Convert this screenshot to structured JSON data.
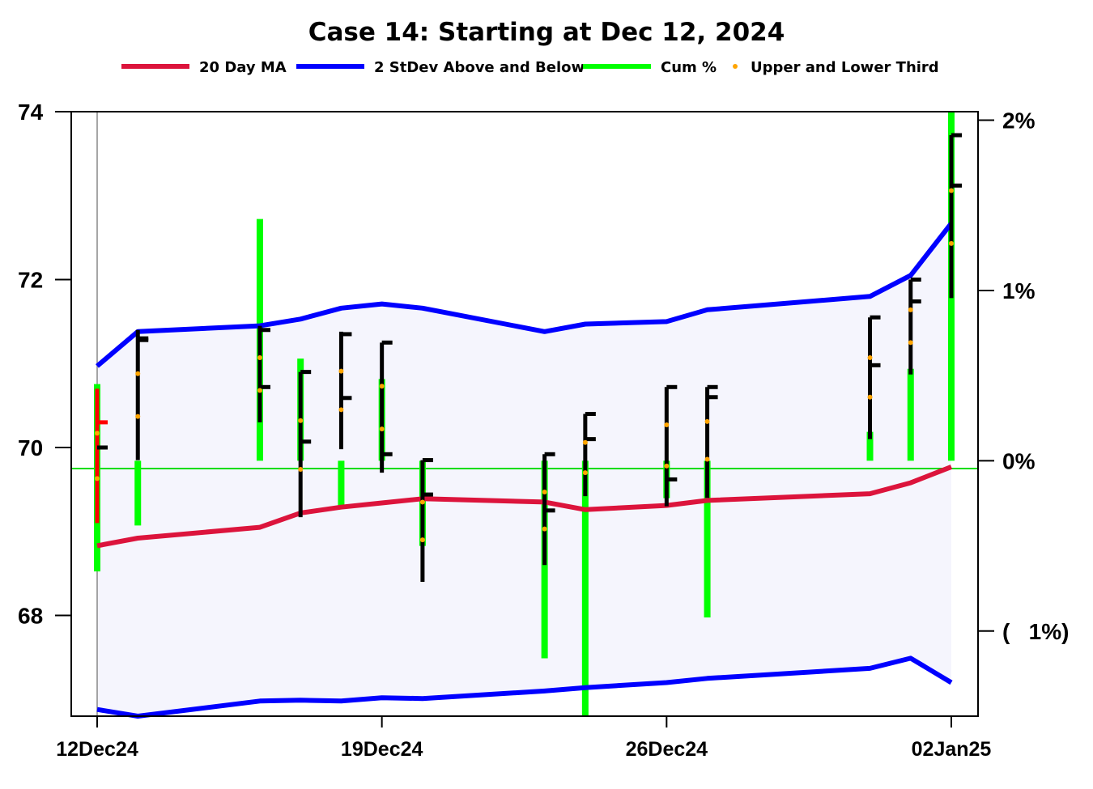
{
  "chart_data": {
    "type": "ohlc",
    "title": "Case 14:  Starting at Dec 12, 2024",
    "legend": [
      {
        "label": "20 Day MA",
        "color": "#dc143c",
        "kind": "line"
      },
      {
        "label": "2 StDev Above and Below",
        "color": "#0000ff",
        "kind": "line"
      },
      {
        "label": "Cum %",
        "color": "#00ff00",
        "kind": "line"
      },
      {
        "label": "Upper and Lower Third",
        "color": "#ffa500",
        "kind": "dot"
      }
    ],
    "legend_position": "top-center",
    "grid": false,
    "y_left": {
      "min": 66.8,
      "max": 74.0,
      "ticks": [
        68,
        70,
        72,
        74
      ]
    },
    "y_right": {
      "min": -1.5,
      "max": 2.05,
      "ticks": [
        2,
        1,
        0,
        -1
      ],
      "tick_labels": [
        "2%",
        "1%",
        "0%",
        "(   1%)"
      ]
    },
    "x_ticks": [
      {
        "date": "2024-12-12",
        "label": "12Dec24"
      },
      {
        "date": "2024-12-19",
        "label": "19Dec24"
      },
      {
        "date": "2024-12-26",
        "label": "26Dec24"
      },
      {
        "date": "2025-01-02",
        "label": "02Jan25"
      }
    ],
    "x_range": [
      "2024-12-11",
      "2025-01-02"
    ],
    "baseline_price": 69.75,
    "bars": [
      {
        "date": "2024-12-12",
        "open": 70.3,
        "high": 70.7,
        "low": 69.1,
        "close": 70.0,
        "upper_third": 70.17,
        "lower_third": 69.63,
        "cum_pct_low": -0.65,
        "cum_pct_high": 0.45,
        "color": "#ff0000"
      },
      {
        "date": "2024-12-13",
        "open": 71.3,
        "high": 71.4,
        "low": 69.85,
        "close": 71.28,
        "upper_third": 70.88,
        "lower_third": 70.37,
        "cum_pct_low": -0.38,
        "cum_pct_high": 0.0,
        "color": "#000000"
      },
      {
        "date": "2024-12-16",
        "open": 71.4,
        "high": 71.45,
        "low": 70.3,
        "close": 70.72,
        "upper_third": 71.07,
        "lower_third": 70.68,
        "cum_pct_low": 0.0,
        "cum_pct_high": 1.42,
        "color": "#000000"
      },
      {
        "date": "2024-12-17",
        "open": 70.9,
        "high": 70.9,
        "low": 69.17,
        "close": 70.07,
        "upper_third": 70.32,
        "lower_third": 69.74,
        "cum_pct_low": 0.0,
        "cum_pct_high": 0.6,
        "color": "#000000"
      },
      {
        "date": "2024-12-18",
        "open": 71.35,
        "high": 71.38,
        "low": 69.98,
        "close": 70.59,
        "upper_third": 70.91,
        "lower_third": 70.45,
        "cum_pct_low": -0.27,
        "cum_pct_high": 0.0,
        "color": "#000000"
      },
      {
        "date": "2024-12-19",
        "open": 71.25,
        "high": 71.25,
        "low": 69.7,
        "close": 69.92,
        "upper_third": 70.73,
        "lower_third": 70.22,
        "cum_pct_low": 0.0,
        "cum_pct_high": 0.48,
        "color": "#000000"
      },
      {
        "date": "2024-12-20",
        "open": 69.85,
        "high": 69.85,
        "low": 68.4,
        "close": 69.44,
        "upper_third": 69.35,
        "lower_third": 68.9,
        "cum_pct_low": -0.5,
        "cum_pct_high": 0.0,
        "color": "#000000"
      },
      {
        "date": "2024-12-23",
        "open": 69.92,
        "high": 69.92,
        "low": 68.6,
        "close": 69.25,
        "upper_third": 69.47,
        "lower_third": 69.03,
        "cum_pct_low": -1.16,
        "cum_pct_high": 0.0,
        "color": "#000000"
      },
      {
        "date": "2024-12-24",
        "open": 70.4,
        "high": 70.4,
        "low": 69.42,
        "close": 70.1,
        "upper_third": 70.06,
        "lower_third": 69.7,
        "cum_pct_low": -1.5,
        "cum_pct_high": 0.0,
        "color": "#000000"
      },
      {
        "date": "2024-12-26",
        "open": 70.72,
        "high": 70.72,
        "low": 69.3,
        "close": 69.62,
        "upper_third": 70.27,
        "lower_third": 69.78,
        "cum_pct_low": -0.22,
        "cum_pct_high": 0.0,
        "color": "#000000"
      },
      {
        "date": "2024-12-27",
        "open": 70.72,
        "high": 70.72,
        "low": 69.4,
        "close": 70.6,
        "upper_third": 70.31,
        "lower_third": 69.86,
        "cum_pct_low": -0.92,
        "cum_pct_high": 0.0,
        "color": "#000000"
      },
      {
        "date": "2024-12-31",
        "open": 71.55,
        "high": 71.55,
        "low": 70.1,
        "close": 70.98,
        "upper_third": 71.07,
        "lower_third": 70.6,
        "cum_pct_low": 0.0,
        "cum_pct_high": 0.17,
        "color": "#000000"
      },
      {
        "date": "2025-01-01",
        "open": 72.0,
        "high": 72.0,
        "low": 70.87,
        "close": 71.74,
        "upper_third": 71.64,
        "lower_third": 71.25,
        "cum_pct_low": 0.0,
        "cum_pct_high": 0.54,
        "color": "#000000"
      },
      {
        "date": "2025-01-02",
        "open": 73.72,
        "high": 73.72,
        "low": 71.78,
        "close": 73.12,
        "upper_third": 73.06,
        "lower_third": 72.43,
        "cum_pct_low": 0.0,
        "cum_pct_high": 2.05,
        "color": "#000000"
      }
    ],
    "moving_average": [
      {
        "date": "2024-12-12",
        "value": 68.83
      },
      {
        "date": "2024-12-13",
        "value": 68.92
      },
      {
        "date": "2024-12-16",
        "value": 69.05
      },
      {
        "date": "2024-12-17",
        "value": 69.22
      },
      {
        "date": "2024-12-18",
        "value": 69.29
      },
      {
        "date": "2024-12-19",
        "value": 69.34
      },
      {
        "date": "2024-12-20",
        "value": 69.39
      },
      {
        "date": "2024-12-23",
        "value": 69.35
      },
      {
        "date": "2024-12-24",
        "value": 69.26
      },
      {
        "date": "2024-12-26",
        "value": 69.31
      },
      {
        "date": "2024-12-27",
        "value": 69.37
      },
      {
        "date": "2024-12-31",
        "value": 69.45
      },
      {
        "date": "2025-01-01",
        "value": 69.58
      },
      {
        "date": "2025-01-02",
        "value": 69.77
      }
    ],
    "upper_band": [
      {
        "date": "2024-12-12",
        "value": 70.97
      },
      {
        "date": "2024-12-13",
        "value": 71.38
      },
      {
        "date": "2024-12-16",
        "value": 71.45
      },
      {
        "date": "2024-12-17",
        "value": 71.53
      },
      {
        "date": "2024-12-18",
        "value": 71.66
      },
      {
        "date": "2024-12-19",
        "value": 71.71
      },
      {
        "date": "2024-12-20",
        "value": 71.66
      },
      {
        "date": "2024-12-23",
        "value": 71.38
      },
      {
        "date": "2024-12-24",
        "value": 71.47
      },
      {
        "date": "2024-12-26",
        "value": 71.5
      },
      {
        "date": "2024-12-27",
        "value": 71.64
      },
      {
        "date": "2024-12-31",
        "value": 71.8
      },
      {
        "date": "2025-01-01",
        "value": 72.05
      },
      {
        "date": "2025-01-02",
        "value": 72.67
      }
    ],
    "lower_band": [
      {
        "date": "2024-12-12",
        "value": 66.88
      },
      {
        "date": "2024-12-13",
        "value": 66.8
      },
      {
        "date": "2024-12-16",
        "value": 66.98
      },
      {
        "date": "2024-12-17",
        "value": 66.99
      },
      {
        "date": "2024-12-18",
        "value": 66.98
      },
      {
        "date": "2024-12-19",
        "value": 67.02
      },
      {
        "date": "2024-12-20",
        "value": 67.01
      },
      {
        "date": "2024-12-23",
        "value": 67.1
      },
      {
        "date": "2024-12-24",
        "value": 67.14
      },
      {
        "date": "2024-12-26",
        "value": 67.2
      },
      {
        "date": "2024-12-27",
        "value": 67.25
      },
      {
        "date": "2024-12-31",
        "value": 67.37
      },
      {
        "date": "2025-01-01",
        "value": 67.49
      },
      {
        "date": "2025-01-02",
        "value": 67.2
      }
    ]
  }
}
